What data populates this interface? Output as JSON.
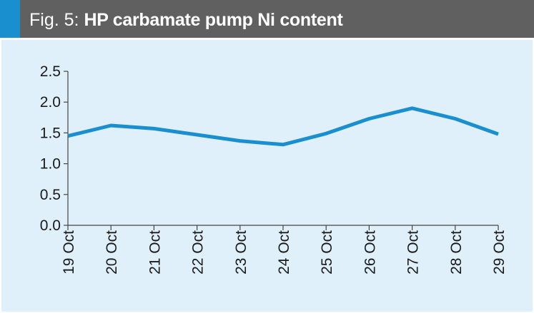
{
  "figure": {
    "label": "Fig. 5:",
    "title": "HP carbamate pump Ni content"
  },
  "colors": {
    "header_bg": "#606060",
    "accent": "#1a8fcf",
    "plot_bg": "#dff0fb",
    "line": "#1a8fd0",
    "axis": "#444444"
  },
  "chart_data": {
    "type": "line",
    "title": "HP carbamate pump Ni content",
    "xlabel": "",
    "ylabel": "",
    "categories": [
      "19 Oct",
      "20 Oct",
      "21 Oct",
      "22 Oct",
      "23 Oct",
      "24 Oct",
      "25 Oct",
      "26 Oct",
      "27 Oct",
      "28 Oct",
      "29 Oct"
    ],
    "series": [
      {
        "values": [
          1.45,
          1.62,
          1.57,
          1.47,
          1.37,
          1.31,
          1.49,
          1.73,
          1.9,
          1.73,
          1.48
        ]
      }
    ],
    "ylim": [
      0,
      2.5
    ],
    "yticks": [
      "0.0",
      "0.5",
      "1.0",
      "1.5",
      "2.0",
      "2.5"
    ],
    "grid": false,
    "legend": "none"
  }
}
